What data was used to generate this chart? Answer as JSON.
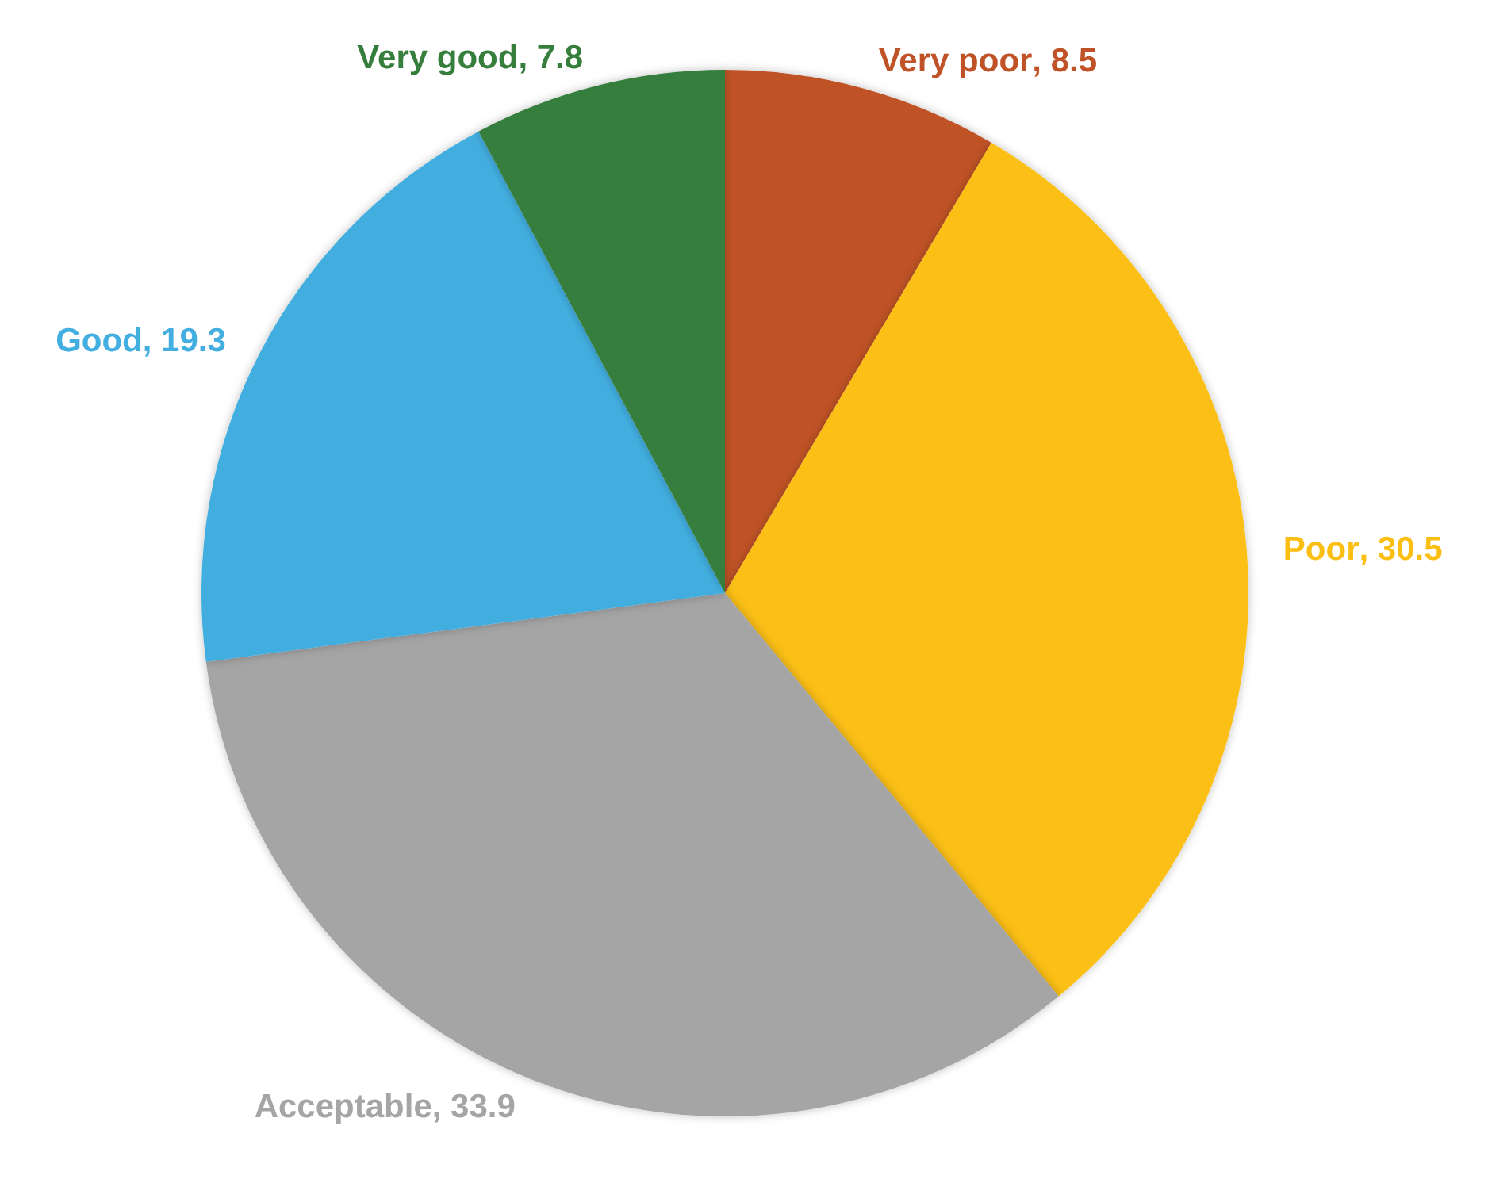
{
  "chart_data": {
    "type": "pie",
    "categories": [
      "Very poor",
      "Poor",
      "Acceptable",
      "Good",
      "Very good"
    ],
    "values": [
      8.5,
      30.5,
      33.9,
      19.3,
      7.8
    ],
    "value_labels": [
      ", 8.5",
      ", 30.5",
      ", 33.9",
      ", 19.3",
      ", 7.8"
    ],
    "colors": [
      "#c05228",
      "#fbbf14",
      "#a5a5a5",
      "#43aee0",
      "#367e3c"
    ],
    "legend": false
  }
}
